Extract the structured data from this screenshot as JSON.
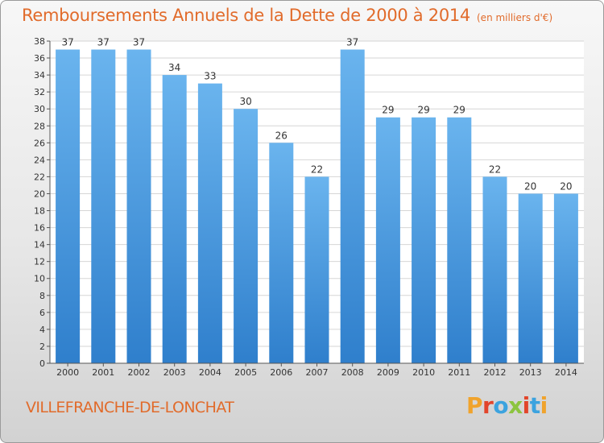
{
  "header": {
    "title": "Remboursements Annuels de la Dette de 2000 à 2014",
    "subtitle": "(en milliers d'€)"
  },
  "footer": {
    "commune": "VILLEFRANCHE-DE-LONCHAT",
    "logo_text": "Proxiti"
  },
  "colors": {
    "bar_light": "#6ab4ee",
    "bar_dark": "#2f7fcc",
    "accent": "#e16b2b",
    "plot_bg": "#ffffff",
    "grid": "#d6d6d6"
  },
  "chart_data": {
    "type": "bar",
    "categories": [
      "2000",
      "2001",
      "2002",
      "2003",
      "2004",
      "2005",
      "2006",
      "2007",
      "2008",
      "2009",
      "2010",
      "2011",
      "2012",
      "2013",
      "2014"
    ],
    "values": [
      37,
      37,
      37,
      34,
      33,
      30,
      26,
      22,
      37,
      29,
      29,
      29,
      22,
      20,
      20
    ],
    "title": "Remboursements Annuels de la Dette de 2000 à 2014",
    "subtitle": "(en milliers d'€)",
    "xlabel": "",
    "ylabel": "",
    "ylim": [
      0,
      38
    ],
    "yticks": [
      0,
      2,
      4,
      6,
      8,
      10,
      12,
      14,
      16,
      18,
      20,
      22,
      24,
      26,
      28,
      30,
      32,
      34,
      36,
      38
    ],
    "grid": true,
    "legend": "none"
  }
}
